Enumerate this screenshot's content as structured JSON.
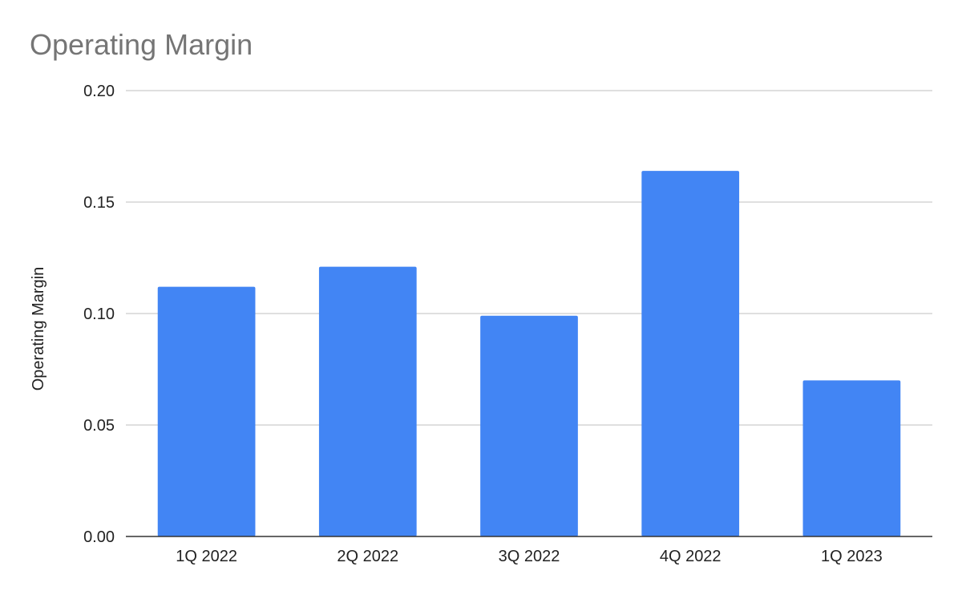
{
  "chart_data": {
    "type": "bar",
    "title": "Operating Margin",
    "xlabel": "",
    "ylabel": "Operating Margin",
    "categories": [
      "1Q 2022",
      "2Q 2022",
      "3Q 2022",
      "4Q 2022",
      "1Q 2023"
    ],
    "series": [
      {
        "values": [
          0.112,
          0.121,
          0.099,
          0.164,
          0.07
        ],
        "color": "#4285f4"
      }
    ],
    "ylim": [
      0,
      0.2
    ],
    "yticks": [
      "0.00",
      "0.05",
      "0.10",
      "0.15",
      "0.20"
    ],
    "grid": true,
    "legend": "none"
  }
}
